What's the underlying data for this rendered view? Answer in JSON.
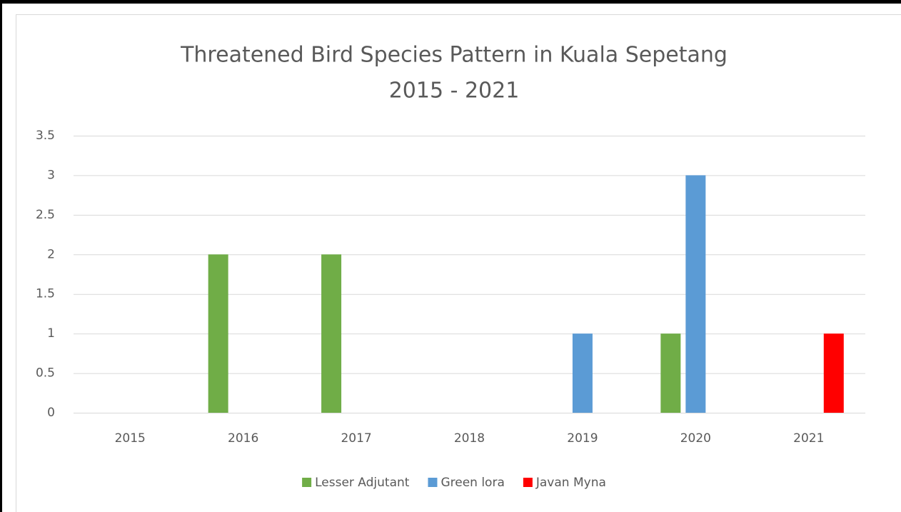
{
  "chart_data": {
    "type": "bar",
    "title": "Threatened Bird Species Pattern in Kuala Sepetang",
    "subtitle": "2015 - 2021",
    "categories": [
      "2015",
      "2016",
      "2017",
      "2018",
      "2019",
      "2020",
      "2021"
    ],
    "series": [
      {
        "name": "Lesser Adjutant",
        "color": "#70ad47",
        "values": [
          0,
          2,
          2,
          0,
          0,
          1,
          0
        ]
      },
      {
        "name": "Green lora",
        "color": "#5b9bd5",
        "values": [
          0,
          0,
          0,
          0,
          1,
          3,
          0
        ]
      },
      {
        "name": "Javan Myna",
        "color": "#ff0000",
        "values": [
          0,
          0,
          0,
          0,
          0,
          0,
          1
        ]
      }
    ],
    "ylim": [
      0,
      3.5
    ],
    "yticks": [
      0,
      0.5,
      1,
      1.5,
      2,
      2.5,
      3,
      3.5
    ],
    "grid": true,
    "legend": "bottom"
  }
}
